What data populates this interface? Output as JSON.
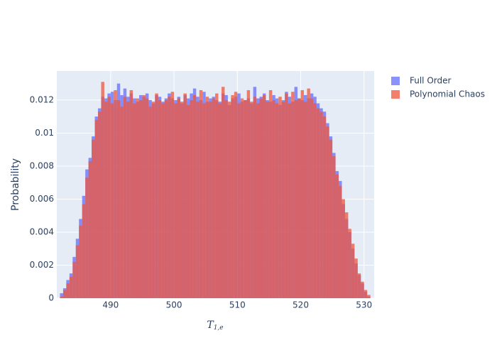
{
  "chart_data": {
    "type": "histogram",
    "y_title": "Probability",
    "x_title": {
      "base": "T",
      "sub": "1,e"
    },
    "xlim": [
      481.5,
      531.6
    ],
    "ylim": [
      0,
      0.01376
    ],
    "xticks": [
      490,
      500,
      510,
      520,
      530
    ],
    "yticks": [
      0,
      0.002,
      0.004,
      0.006,
      0.008,
      0.01,
      0.012
    ],
    "grid": true,
    "legend": "top-right",
    "barmode": "overlay",
    "opacity": 0.75,
    "bins": [
      482,
      482.5,
      483,
      483.5,
      484,
      484.5,
      485,
      485.5,
      486,
      486.5,
      487,
      487.5,
      488,
      488.5,
      489,
      489.5,
      490,
      490.5,
      491,
      491.5,
      492,
      492.5,
      493,
      493.5,
      494,
      494.5,
      495,
      495.5,
      496,
      496.5,
      497,
      497.5,
      498,
      498.5,
      499,
      499.5,
      500,
      500.5,
      501,
      501.5,
      502,
      502.5,
      503,
      503.5,
      504,
      504.5,
      505,
      505.5,
      506,
      506.5,
      507,
      507.5,
      508,
      508.5,
      509,
      509.5,
      510,
      510.5,
      511,
      511.5,
      512,
      512.5,
      513,
      513.5,
      514,
      514.5,
      515,
      515.5,
      516,
      516.5,
      517,
      517.5,
      518,
      518.5,
      519,
      519.5,
      520,
      520.5,
      521,
      521.5,
      522,
      522.5,
      523,
      523.5,
      524,
      524.5,
      525,
      525.5,
      526,
      526.5,
      527,
      527.5,
      528,
      528.5,
      529,
      529.5,
      530,
      530.5,
      531
    ],
    "series": [
      {
        "name": "Full Order",
        "color": "#636efa",
        "values": [
          0.0003,
          0.0006,
          0.0011,
          0.0015,
          0.0025,
          0.0036,
          0.0048,
          0.0062,
          0.0078,
          0.0085,
          0.0098,
          0.011,
          0.0115,
          0.0122,
          0.0121,
          0.0124,
          0.0125,
          0.012,
          0.013,
          0.0123,
          0.0127,
          0.0122,
          0.0124,
          0.0121,
          0.0119,
          0.0123,
          0.0122,
          0.0124,
          0.012,
          0.0118,
          0.0123,
          0.0122,
          0.0119,
          0.0121,
          0.0124,
          0.0121,
          0.012,
          0.0122,
          0.0118,
          0.0123,
          0.0121,
          0.0124,
          0.0127,
          0.0122,
          0.012,
          0.0125,
          0.0119,
          0.0121,
          0.0122,
          0.012,
          0.0119,
          0.0124,
          0.0123,
          0.0117,
          0.0121,
          0.0122,
          0.0124,
          0.0119,
          0.012,
          0.0121,
          0.0118,
          0.0128,
          0.0121,
          0.0122,
          0.0124,
          0.012,
          0.0119,
          0.0123,
          0.0121,
          0.0117,
          0.012,
          0.0125,
          0.0122,
          0.0119,
          0.0128,
          0.0121,
          0.012,
          0.0123,
          0.0121,
          0.0124,
          0.0122,
          0.0118,
          0.0115,
          0.0113,
          0.0106,
          0.0098,
          0.0088,
          0.0077,
          0.0071,
          0.0057,
          0.0048,
          0.004,
          0.003,
          0.0021,
          0.0014,
          0.0009,
          0.0004,
          0.0001
        ]
      },
      {
        "name": "Polynomial Chaos",
        "color": "#ef553b",
        "values": [
          0.0001,
          0.0005,
          0.0009,
          0.0013,
          0.0022,
          0.0032,
          0.0044,
          0.0057,
          0.0073,
          0.0083,
          0.0096,
          0.0108,
          0.0113,
          0.0131,
          0.0119,
          0.0122,
          0.0118,
          0.0126,
          0.012,
          0.0116,
          0.0122,
          0.0119,
          0.0126,
          0.0118,
          0.0121,
          0.012,
          0.0123,
          0.0121,
          0.0116,
          0.0119,
          0.0124,
          0.012,
          0.0118,
          0.012,
          0.0122,
          0.0125,
          0.0118,
          0.0121,
          0.0119,
          0.0124,
          0.0117,
          0.012,
          0.0123,
          0.0119,
          0.0126,
          0.0118,
          0.0122,
          0.0119,
          0.0121,
          0.0124,
          0.0118,
          0.0128,
          0.012,
          0.0119,
          0.0123,
          0.0125,
          0.0118,
          0.0121,
          0.012,
          0.0126,
          0.0119,
          0.0122,
          0.0118,
          0.0121,
          0.0123,
          0.0119,
          0.0126,
          0.012,
          0.0118,
          0.0122,
          0.0119,
          0.0124,
          0.0118,
          0.0125,
          0.012,
          0.0121,
          0.0126,
          0.0119,
          0.0127,
          0.0121,
          0.0118,
          0.0115,
          0.0113,
          0.011,
          0.0104,
          0.0096,
          0.0086,
          0.0075,
          0.0068,
          0.006,
          0.0052,
          0.0042,
          0.0033,
          0.0024,
          0.0015,
          0.001,
          0.0005,
          0.0002
        ]
      }
    ]
  }
}
